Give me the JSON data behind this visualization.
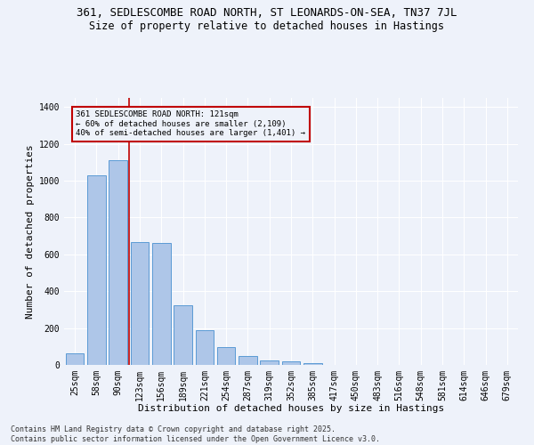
{
  "title1": "361, SEDLESCOMBE ROAD NORTH, ST LEONARDS-ON-SEA, TN37 7JL",
  "title2": "Size of property relative to detached houses in Hastings",
  "xlabel": "Distribution of detached houses by size in Hastings",
  "ylabel": "Number of detached properties",
  "categories": [
    "25sqm",
    "58sqm",
    "90sqm",
    "123sqm",
    "156sqm",
    "189sqm",
    "221sqm",
    "254sqm",
    "287sqm",
    "319sqm",
    "352sqm",
    "385sqm",
    "417sqm",
    "450sqm",
    "483sqm",
    "516sqm",
    "548sqm",
    "581sqm",
    "614sqm",
    "646sqm",
    "679sqm"
  ],
  "values": [
    65,
    1030,
    1110,
    665,
    660,
    325,
    190,
    95,
    50,
    22,
    18,
    12,
    0,
    0,
    0,
    0,
    0,
    0,
    0,
    0,
    0
  ],
  "bar_color": "#aec6e8",
  "bar_edge_color": "#5b9bd5",
  "vline_color": "#c00000",
  "annotation_text": "361 SEDLESCOMBE ROAD NORTH: 121sqm\n← 60% of detached houses are smaller (2,109)\n40% of semi-detached houses are larger (1,401) →",
  "annotation_box_color": "#c00000",
  "ylim": [
    0,
    1450
  ],
  "background_color": "#eef2fa",
  "grid_color": "#ffffff",
  "footnote": "Contains HM Land Registry data © Crown copyright and database right 2025.\nContains public sector information licensed under the Open Government Licence v3.0.",
  "title_fontsize": 9,
  "subtitle_fontsize": 8.5,
  "axis_label_fontsize": 8,
  "tick_fontsize": 7,
  "footnote_fontsize": 6
}
